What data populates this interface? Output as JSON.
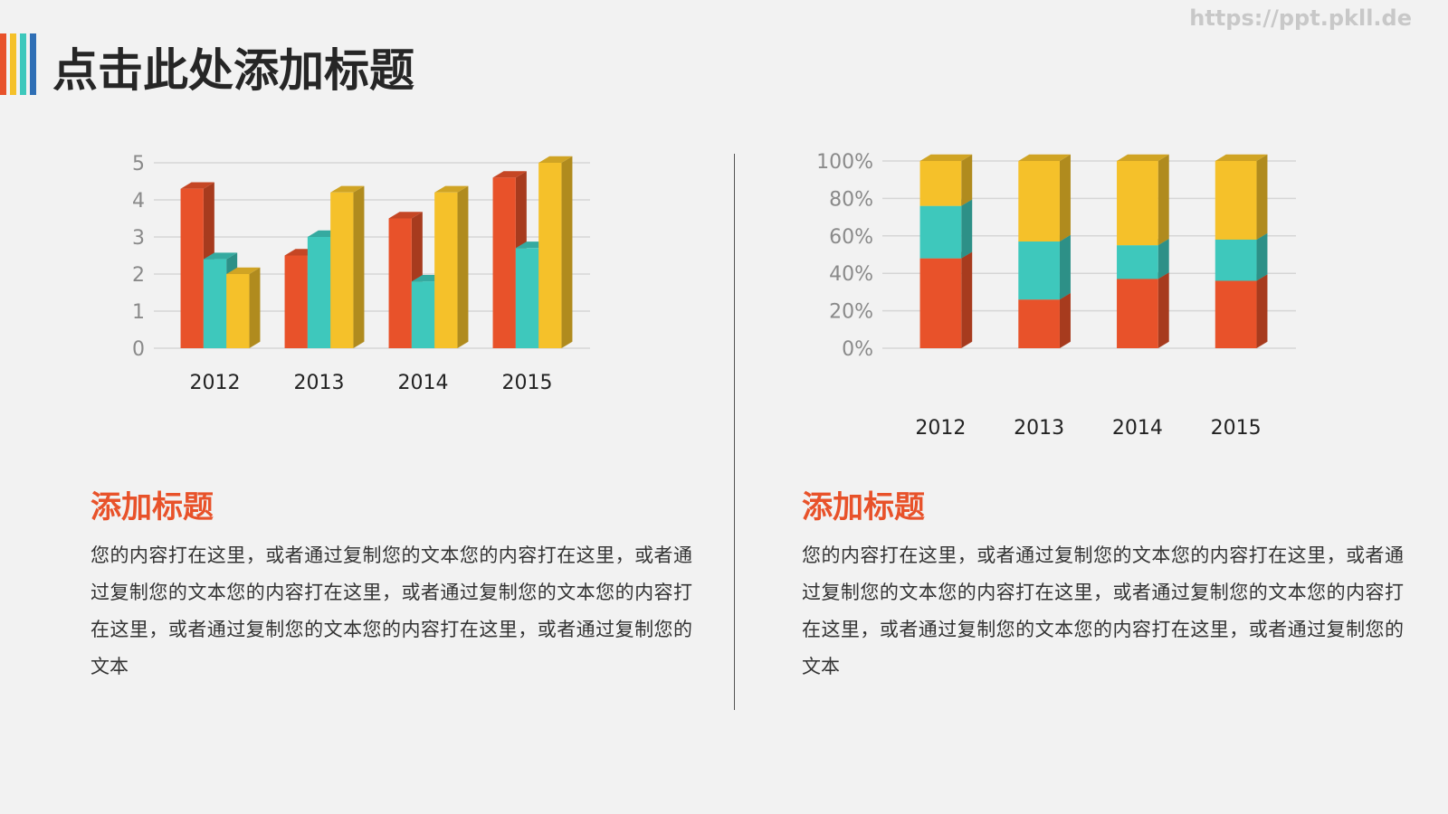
{
  "header": {
    "title": "点击此处添加标题",
    "watermark": "https://ppt.pkll.de"
  },
  "chart_data": [
    {
      "type": "bar",
      "categories": [
        "2012",
        "2013",
        "2014",
        "2015"
      ],
      "series": [
        {
          "color": "#e8522a",
          "values": [
            4.3,
            2.5,
            3.5,
            4.6
          ]
        },
        {
          "color": "#3ec8bc",
          "values": [
            2.4,
            3.0,
            1.8,
            2.7
          ]
        },
        {
          "color": "#f5c12a",
          "values": [
            2.0,
            4.2,
            4.2,
            5.0
          ]
        }
      ],
      "ylim": [
        0,
        5
      ],
      "yticks": [
        0,
        1,
        2,
        3,
        4,
        5
      ],
      "grid": true
    },
    {
      "type": "stacked_bar",
      "categories": [
        "2012",
        "2013",
        "2014",
        "2015"
      ],
      "series": [
        {
          "color": "#e8522a",
          "values": [
            48,
            26,
            37,
            36
          ]
        },
        {
          "color": "#3ec8bc",
          "values": [
            28,
            31,
            18,
            22
          ]
        },
        {
          "color": "#f5c12a",
          "values": [
            24,
            43,
            45,
            42
          ]
        }
      ],
      "ylim": [
        0,
        100
      ],
      "yticks": [
        {
          "value": 0,
          "label": "0%"
        },
        {
          "value": 20,
          "label": "20%"
        },
        {
          "value": 40,
          "label": "40%"
        },
        {
          "value": 60,
          "label": "60%"
        },
        {
          "value": 80,
          "label": "80%"
        },
        {
          "value": 100,
          "label": "100%"
        }
      ],
      "grid": true
    }
  ],
  "sections": [
    {
      "heading": "添加标题",
      "body": "您的内容打在这里，或者通过复制您的文本您的内容打在这里，或者通过复制您的文本您的内容打在这里，或者通过复制您的文本您的内容打在这里，或者通过复制您的文本您的内容打在这里，或者通过复制您的文本"
    },
    {
      "heading": "添加标题",
      "body": "您的内容打在这里，或者通过复制您的文本您的内容打在这里，或者通过复制您的文本您的内容打在这里，或者通过复制您的文本您的内容打在这里，或者通过复制您的文本您的内容打在这里，或者通过复制您的文本"
    }
  ]
}
